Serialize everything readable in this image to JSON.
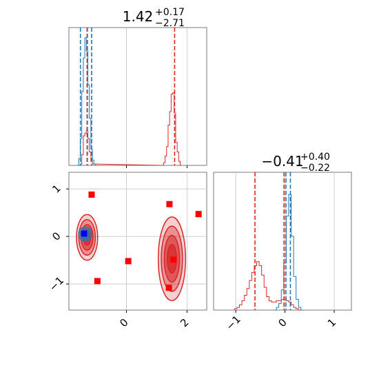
{
  "chart_data": {
    "type": "corner",
    "colors": {
      "posterior_a": "#1f77b4",
      "posterior_b": "#d62728",
      "markers": "#ff0000",
      "true_value": "#0000ff",
      "grid": "#cccccc"
    },
    "parameters": [
      {
        "title_value": "1.42",
        "title_plus": "+0.17",
        "title_minus": "−2.71",
        "range": [
          -1.9,
          2.65
        ],
        "ticks": [],
        "quantile_lines_red": [
          -1.3,
          1.59
        ],
        "quantile_lines_blue": [
          -1.52,
          -1.29,
          -1.15
        ]
      },
      {
        "title_value": "−0.41",
        "title_plus": "+0.40",
        "title_minus": "−0.22",
        "range": [
          -1.45,
          1.35
        ],
        "ticks": [
          {
            "value": -1,
            "label": "−1"
          },
          {
            "value": 0,
            "label": "0"
          },
          {
            "value": 1,
            "label": "1"
          }
        ],
        "quantile_lines_red": [
          -0.61,
          -0.02
        ],
        "quantile_lines_blue": [
          0.02,
          0.11
        ]
      }
    ],
    "joint": {
      "x_ticks": [
        {
          "value": 0,
          "label": "0"
        },
        {
          "value": 2,
          "label": "2"
        }
      ],
      "y_ticks": [
        {
          "value": 1,
          "label": "1"
        },
        {
          "value": 0,
          "label": "0"
        },
        {
          "value": -1,
          "label": "−1"
        }
      ],
      "x_range": [
        -1.9,
        2.65
      ],
      "y_range": [
        -1.55,
        1.35
      ],
      "square_markers": [
        {
          "x": -1.15,
          "y": 0.88
        },
        {
          "x": 1.42,
          "y": 0.68
        },
        {
          "x": 2.38,
          "y": 0.47
        },
        {
          "x": 0.06,
          "y": -0.52
        },
        {
          "x": 1.55,
          "y": -0.49
        },
        {
          "x": -0.96,
          "y": -0.94
        },
        {
          "x": 1.4,
          "y": -1.08
        }
      ],
      "true_point": {
        "x": -1.4,
        "y": 0.06
      },
      "contours_b": [
        {
          "cx": -1.3,
          "cy": -0.02,
          "rx": 0.35,
          "ry": 0.48
        },
        {
          "cx": 1.5,
          "cy": -0.47,
          "rx": 0.45,
          "ry": 0.88
        }
      ],
      "contours_a": [
        {
          "cx": -1.36,
          "cy": 0.05,
          "rx": 0.22,
          "ry": 0.15
        }
      ]
    },
    "hist_1": {
      "red": [
        [
          -1.55,
          0.0
        ],
        [
          -1.5,
          0.01
        ],
        [
          -1.45,
          0.08
        ],
        [
          -1.4,
          0.22
        ],
        [
          -1.35,
          0.24
        ],
        [
          -1.3,
          0.26
        ],
        [
          -1.25,
          0.2
        ],
        [
          -1.2,
          0.1
        ],
        [
          -1.15,
          0.03
        ],
        [
          -1.1,
          0.01
        ],
        [
          1.2,
          0.0
        ],
        [
          1.25,
          0.02
        ],
        [
          1.3,
          0.07
        ],
        [
          1.35,
          0.14
        ],
        [
          1.4,
          0.3
        ],
        [
          1.45,
          0.4
        ],
        [
          1.5,
          0.53
        ],
        [
          1.55,
          0.54
        ],
        [
          1.6,
          0.39
        ],
        [
          1.65,
          0.17
        ],
        [
          1.7,
          0.1
        ],
        [
          1.75,
          0.03
        ],
        [
          1.8,
          0.0
        ]
      ],
      "blue": [
        [
          -1.6,
          0.0
        ],
        [
          -1.55,
          0.05
        ],
        [
          -1.5,
          0.2
        ],
        [
          -1.45,
          0.55
        ],
        [
          -1.4,
          0.8
        ],
        [
          -1.35,
          0.95
        ],
        [
          -1.3,
          0.85
        ],
        [
          -1.25,
          0.6
        ],
        [
          -1.2,
          0.35
        ],
        [
          -1.15,
          0.12
        ],
        [
          -1.1,
          0.04
        ],
        [
          -1.05,
          0.01
        ],
        [
          -1.0,
          0.0
        ]
      ]
    },
    "hist_2": {
      "red": [
        [
          -1.0,
          0.01
        ],
        [
          -0.95,
          0.02
        ],
        [
          -0.9,
          0.04
        ],
        [
          -0.85,
          0.07
        ],
        [
          -0.8,
          0.11
        ],
        [
          -0.75,
          0.16
        ],
        [
          -0.7,
          0.22
        ],
        [
          -0.65,
          0.28
        ],
        [
          -0.6,
          0.33
        ],
        [
          -0.55,
          0.36
        ],
        [
          -0.5,
          0.33
        ],
        [
          -0.45,
          0.26
        ],
        [
          -0.4,
          0.17
        ],
        [
          -0.35,
          0.1
        ],
        [
          -0.3,
          0.07
        ],
        [
          -0.25,
          0.06
        ],
        [
          -0.2,
          0.06
        ],
        [
          -0.15,
          0.07
        ],
        [
          -0.1,
          0.07
        ],
        [
          -0.05,
          0.08
        ],
        [
          0.0,
          0.08
        ],
        [
          0.05,
          0.07
        ],
        [
          0.1,
          0.06
        ],
        [
          0.15,
          0.04
        ],
        [
          0.2,
          0.02
        ],
        [
          0.25,
          0.01
        ],
        [
          0.3,
          0.0
        ]
      ],
      "blue": [
        [
          -0.2,
          0.0
        ],
        [
          -0.15,
          0.02
        ],
        [
          -0.1,
          0.05
        ],
        [
          -0.05,
          0.15
        ],
        [
          0.0,
          0.35
        ],
        [
          0.05,
          0.7
        ],
        [
          0.1,
          0.86
        ],
        [
          0.15,
          0.55
        ],
        [
          0.2,
          0.25
        ],
        [
          0.25,
          0.08
        ],
        [
          0.3,
          0.02
        ],
        [
          0.35,
          0.0
        ]
      ]
    }
  }
}
